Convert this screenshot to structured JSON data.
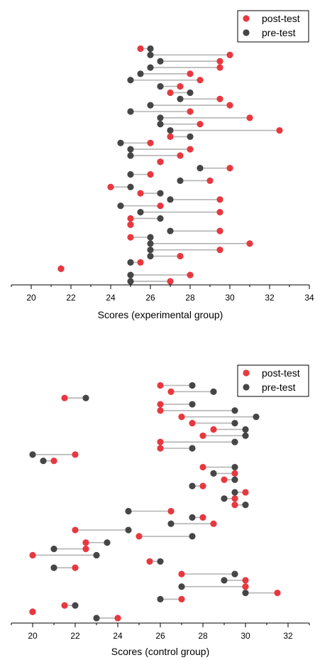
{
  "colors": {
    "post": "#e8383f",
    "pre": "#464646",
    "connector": "#b4b4b4"
  },
  "chart_data": [
    {
      "type": "scatter",
      "subtype": "dumbbell",
      "xlabel": "Scores (experimental group)",
      "xlim": [
        19,
        34
      ],
      "xticks": [
        20,
        22,
        24,
        26,
        28,
        30,
        32,
        34
      ],
      "grid": false,
      "legend": {
        "position": "top-right",
        "entries": [
          "post-test",
          "pre-test"
        ]
      },
      "pairs": [
        {
          "pre": 26,
          "post": 25.5
        },
        {
          "pre": 26,
          "post": 30
        },
        {
          "pre": 26.5,
          "post": 29.5
        },
        {
          "pre": 26,
          "post": 29.5
        },
        {
          "pre": 25.5,
          "post": 28
        },
        {
          "pre": 25,
          "post": 28.5
        },
        {
          "pre": 26.5,
          "post": 27.5
        },
        {
          "pre": 28,
          "post": 27
        },
        {
          "pre": 27.5,
          "post": 29.5
        },
        {
          "pre": 26,
          "post": 30
        },
        {
          "pre": 25,
          "post": 28
        },
        {
          "pre": 26.5,
          "post": 31
        },
        {
          "pre": 26.5,
          "post": 28.5
        },
        {
          "pre": 27,
          "post": 32.5
        },
        {
          "pre": 28,
          "post": 27
        },
        {
          "pre": 24.5,
          "post": 26
        },
        {
          "pre": 25,
          "post": 28
        },
        {
          "pre": 25,
          "post": 27.5
        },
        {
          "pre": 26.5,
          "post": 26.5
        },
        {
          "pre": 28.5,
          "post": 30
        },
        {
          "pre": 25,
          "post": 26
        },
        {
          "pre": 27.5,
          "post": 29
        },
        {
          "pre": 25,
          "post": 24
        },
        {
          "pre": 26.5,
          "post": 25.5
        },
        {
          "pre": 27,
          "post": 29.5
        },
        {
          "pre": 24.5,
          "post": 26.5
        },
        {
          "pre": 25.5,
          "post": 29.5
        },
        {
          "pre": 26.5,
          "post": 25
        },
        {
          "pre": 25,
          "post": 25
        },
        {
          "pre": 27,
          "post": 29.5
        },
        {
          "pre": 26,
          "post": 25
        },
        {
          "pre": 26,
          "post": 31
        },
        {
          "pre": 26,
          "post": 29.5
        },
        {
          "pre": 26,
          "post": 27.5
        },
        {
          "pre": 25,
          "post": 25.5
        },
        {
          "pre": 21.5,
          "post": 21.5
        },
        {
          "pre": 25,
          "post": 28
        },
        {
          "pre": 25,
          "post": 27
        }
      ]
    },
    {
      "type": "scatter",
      "subtype": "dumbbell",
      "xlabel": "Scores (control group)",
      "xlim": [
        19,
        33
      ],
      "xticks": [
        20,
        22,
        24,
        26,
        28,
        30,
        32
      ],
      "grid": false,
      "legend": {
        "position": "top-right",
        "entries": [
          "post-test",
          "pre-test"
        ]
      },
      "pairs": [
        {
          "pre": 27.5,
          "post": 26
        },
        {
          "pre": 28.5,
          "post": 26.5
        },
        {
          "pre": 22.5,
          "post": 21.5
        },
        {
          "pre": 27.5,
          "post": 26
        },
        {
          "pre": 29.5,
          "post": 26
        },
        {
          "pre": 30.5,
          "post": 27
        },
        {
          "pre": 29.5,
          "post": 27.5
        },
        {
          "pre": 30,
          "post": 28.5
        },
        {
          "pre": 30,
          "post": 28
        },
        {
          "pre": 29.5,
          "post": 26
        },
        {
          "pre": 27.5,
          "post": 26
        },
        {
          "pre": 20,
          "post": 22
        },
        {
          "pre": 20.5,
          "post": 21
        },
        {
          "pre": 29.5,
          "post": 28
        },
        {
          "pre": 28.5,
          "post": 29.5
        },
        {
          "pre": 29.5,
          "post": 29
        },
        {
          "pre": 27.5,
          "post": 28
        },
        {
          "pre": 29.5,
          "post": 30
        },
        {
          "pre": 29,
          "post": 29.5
        },
        {
          "pre": 30,
          "post": 29.5
        },
        {
          "pre": 24.5,
          "post": 26.5
        },
        {
          "pre": 27.5,
          "post": 28
        },
        {
          "pre": 26.5,
          "post": 28.5
        },
        {
          "pre": 24.5,
          "post": 22
        },
        {
          "pre": 27.5,
          "post": 25
        },
        {
          "pre": 23.5,
          "post": 22.5
        },
        {
          "pre": 21,
          "post": 22.5
        },
        {
          "pre": 23,
          "post": 20
        },
        {
          "pre": 26,
          "post": 25.5
        },
        {
          "pre": 21,
          "post": 22
        },
        {
          "pre": 29.5,
          "post": 27
        },
        {
          "pre": 29,
          "post": 30
        },
        {
          "pre": 27,
          "post": 30
        },
        {
          "pre": 30,
          "post": 31.5
        },
        {
          "pre": 26,
          "post": 27
        },
        {
          "pre": 22,
          "post": 21.5
        },
        {
          "pre": 20,
          "post": 20
        },
        {
          "pre": 23,
          "post": 24
        }
      ]
    }
  ]
}
